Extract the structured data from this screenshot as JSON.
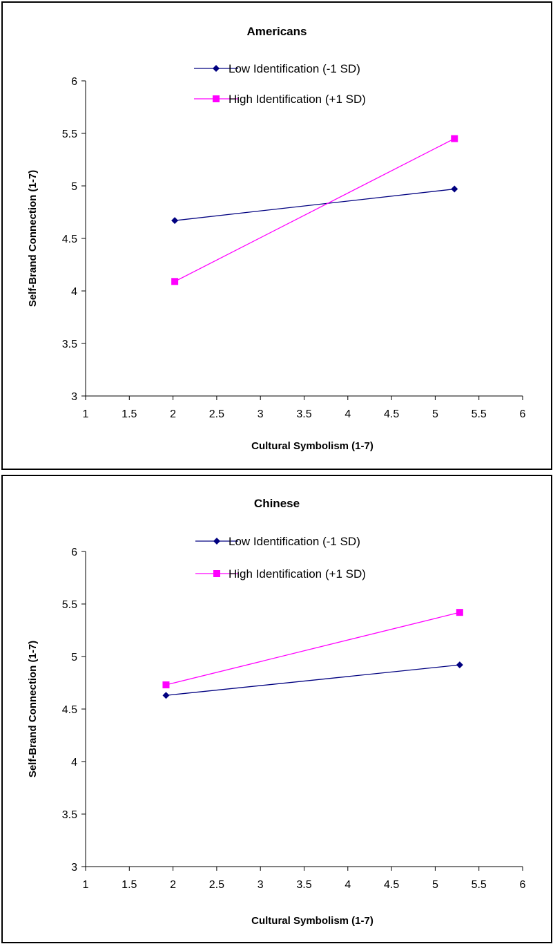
{
  "chart_data": [
    {
      "type": "line",
      "title": "Americans",
      "xlabel": "Cultural Symbolism (1-7)",
      "ylabel": "Self-Brand Connection (1-7)",
      "xlim": [
        1,
        6
      ],
      "ylim": [
        3,
        6
      ],
      "xticks": [
        "1",
        "1.5",
        "2",
        "2.5",
        "3",
        "3.5",
        "4",
        "4.5",
        "5",
        "5.5",
        "6"
      ],
      "yticks": [
        "3",
        "3.5",
        "4",
        "4.5",
        "5",
        "5.5",
        "6"
      ],
      "grid": false,
      "legend_position": "top",
      "series": [
        {
          "name": "Low Identification (-1 SD)",
          "color": "#000080",
          "marker": "diamond",
          "x": [
            2.02,
            5.22
          ],
          "y": [
            4.67,
            4.97
          ]
        },
        {
          "name": "High Identification (+1 SD)",
          "color": "#ff00ff",
          "marker": "square",
          "x": [
            2.02,
            5.22
          ],
          "y": [
            4.09,
            5.45
          ]
        }
      ]
    },
    {
      "type": "line",
      "title": "Chinese",
      "xlabel": "Cultural Symbolism (1-7)",
      "ylabel": "Self-Brand Connection (1-7)",
      "xlim": [
        1,
        6
      ],
      "ylim": [
        3,
        6
      ],
      "xticks": [
        "1",
        "1.5",
        "2",
        "2.5",
        "3",
        "3.5",
        "4",
        "4.5",
        "5",
        "5.5",
        "6"
      ],
      "yticks": [
        "3",
        "3.5",
        "4",
        "4.5",
        "5",
        "5.5",
        "6"
      ],
      "grid": false,
      "legend_position": "top",
      "series": [
        {
          "name": "Low Identification (-1 SD)",
          "color": "#000080",
          "marker": "diamond",
          "x": [
            1.92,
            5.28
          ],
          "y": [
            4.63,
            4.92
          ]
        },
        {
          "name": "High Identification (+1 SD)",
          "color": "#ff00ff",
          "marker": "square",
          "x": [
            1.92,
            5.28
          ],
          "y": [
            4.73,
            5.42
          ]
        }
      ]
    }
  ]
}
